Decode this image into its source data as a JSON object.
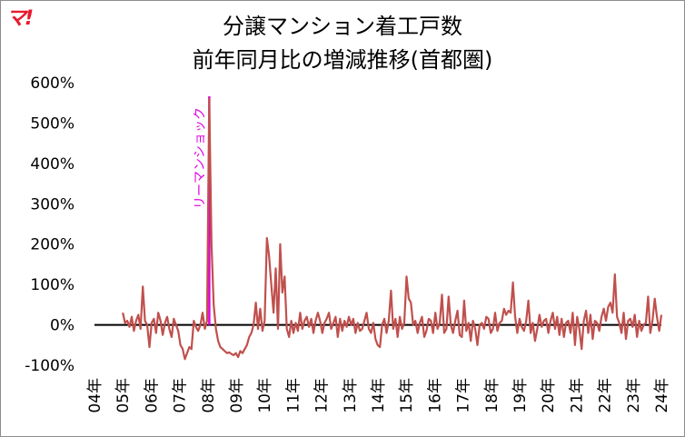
{
  "logo": "マ!",
  "chart_data": {
    "type": "line",
    "title": "分譲マンション着工戸数",
    "subtitle": "前年同月比の増減推移(首都圏)",
    "xlabel": "",
    "ylabel": "",
    "ylim": [
      -100,
      600
    ],
    "yticks": [
      -100,
      0,
      100,
      200,
      300,
      400,
      500,
      600
    ],
    "ytick_labels": [
      "-100%",
      "0%",
      "100%",
      "200%",
      "300%",
      "400%",
      "500%",
      "600%"
    ],
    "xlim": [
      2004,
      2024
    ],
    "xtick_labels": [
      "04年",
      "05年",
      "06年",
      "07年",
      "08年",
      "09年",
      "10年",
      "11年",
      "12年",
      "13年",
      "14年",
      "15年",
      "16年",
      "17年",
      "18年",
      "19年",
      "20年",
      "21年",
      "22年",
      "23年",
      "24年"
    ],
    "grid": false,
    "zero_line": true,
    "line_color": "#c0504d",
    "annotation": {
      "label": "リーマンショック",
      "x": 2008.05,
      "color": "#e000e0"
    },
    "series": [
      {
        "values": [
          30,
          5,
          10,
          -5,
          20,
          -15,
          10,
          25,
          -10,
          95,
          10,
          0,
          -55,
          5,
          15,
          -20,
          30,
          10,
          -25,
          5,
          20,
          -10,
          -30,
          15,
          0,
          -15,
          -50,
          -60,
          -85,
          -70,
          -55,
          -60,
          10,
          -5,
          -15,
          0,
          30,
          -10,
          10,
          560,
          200,
          50,
          -10,
          -40,
          -55,
          -60,
          -65,
          -70,
          -68,
          -72,
          -75,
          -70,
          -80,
          -65,
          -70,
          -60,
          -50,
          -30,
          -20,
          0,
          55,
          -10,
          40,
          -15,
          10,
          215,
          170,
          100,
          30,
          140,
          -10,
          200,
          80,
          120,
          -10,
          -30,
          10,
          -20,
          5,
          -15,
          30,
          -10,
          10,
          20,
          -5,
          15,
          -20,
          10,
          30,
          10,
          -20,
          5,
          15,
          30,
          -10,
          5,
          20,
          -30,
          15,
          -15,
          10,
          -5,
          20,
          0,
          15,
          -20,
          5,
          -15,
          -10,
          10,
          30,
          -10,
          -20,
          5,
          -35,
          -50,
          -55,
          0,
          15,
          -20,
          10,
          85,
          -10,
          15,
          -30,
          20,
          -10,
          5,
          120,
          65,
          55,
          0,
          10,
          -20,
          5,
          20,
          -30,
          -15,
          15,
          10,
          -20,
          30,
          -10,
          5,
          75,
          -20,
          -10,
          70,
          0,
          -20,
          10,
          35,
          -25,
          -30,
          60,
          -15,
          5,
          -40,
          10,
          -10,
          -50,
          0,
          5,
          -10,
          20,
          15,
          -20,
          -10,
          30,
          -15,
          5,
          10,
          40,
          25,
          35,
          30,
          105,
          20,
          -20,
          15,
          -5,
          -15,
          10,
          60,
          -20,
          5,
          -40,
          -10,
          25,
          -5,
          10,
          15,
          -20,
          10,
          30,
          -10,
          20,
          -25,
          15,
          -30,
          5,
          10,
          -20,
          30,
          -50,
          20,
          -10,
          -60,
          10,
          35,
          -20,
          25,
          -35,
          10,
          5,
          -15,
          20,
          40,
          10,
          45,
          55,
          30,
          125,
          20,
          5,
          -20,
          30,
          -35,
          10,
          15,
          -5,
          25,
          -30,
          10,
          -15,
          0,
          5,
          70,
          -20,
          10,
          65,
          20,
          -15,
          25
        ]
      }
    ]
  }
}
